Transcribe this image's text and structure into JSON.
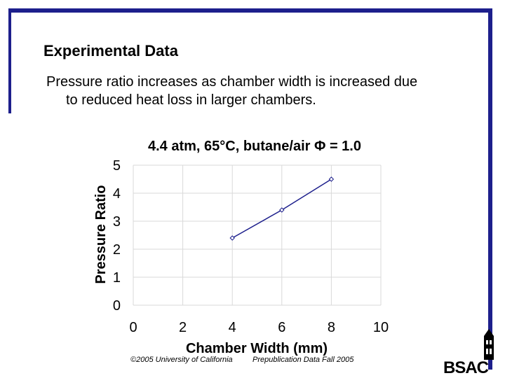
{
  "slide": {
    "title": "Experimental Data",
    "body": "Pressure ratio increases as chamber width is increased due to reduced heat loss in larger chambers.",
    "footer_copyright": "©2005 University of California",
    "footer_note": "Prepublication Data Fall 2005",
    "logo_text": "BSAC",
    "border_color": "#1d1f8c"
  },
  "chart_data": {
    "type": "line",
    "title": "4.4 atm, 65°C, butane/air Φ = 1.0",
    "xlabel": "Chamber Width (mm)",
    "ylabel": "Pressure Ratio",
    "xlim": [
      0,
      10
    ],
    "ylim": [
      0,
      5
    ],
    "xticks": [
      0,
      2,
      4,
      6,
      8,
      10
    ],
    "yticks": [
      0,
      1,
      2,
      3,
      4,
      5
    ],
    "grid": true,
    "series": [
      {
        "x": [
          4,
          6,
          8
        ],
        "y": [
          2.4,
          3.4,
          4.5
        ],
        "color": "#1d1f8c"
      }
    ]
  }
}
